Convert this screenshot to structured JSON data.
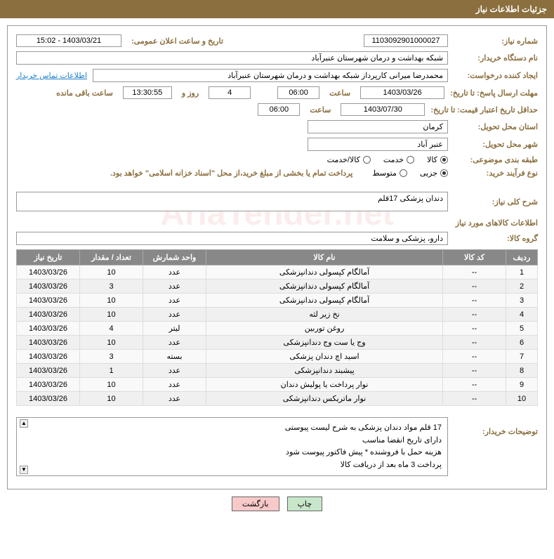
{
  "header": {
    "title": "جزئیات اطلاعات نیاز"
  },
  "fields": {
    "need_number_label": "شماره نیاز:",
    "need_number": "1103092901000027",
    "announce_date_label": "تاریخ و ساعت اعلان عمومی:",
    "announce_date": "1403/03/21 - 15:02",
    "buyer_org_label": "نام دستگاه خریدار:",
    "buyer_org": "شبکه بهداشت و درمان شهرستان عنبرآباد",
    "requester_label": "ایجاد کننده درخواست:",
    "requester": "محمدرضا میرانی کارپرداز  شبکه بهداشت و درمان شهرستان عنبرآباد",
    "contact_link": "اطلاعات تماس خریدار",
    "deadline_label": "مهلت ارسال پاسخ: تا تاریخ:",
    "deadline_date": "1403/03/26",
    "time_label": "ساعت",
    "deadline_time": "06:00",
    "days_remaining": "4",
    "days_word": "روز و",
    "time_remaining": "13:30:55",
    "remaining_label": "ساعت باقی مانده",
    "validity_label": "حداقل تاریخ اعتبار قیمت: تا تاریخ:",
    "validity_date": "1403/07/30",
    "validity_time": "06:00",
    "delivery_province_label": "استان محل تحویل:",
    "delivery_province": "کرمان",
    "delivery_city_label": "شهر محل تحویل:",
    "delivery_city": "عنبر آباد",
    "category_label": "طبقه بندی موضوعی:",
    "cat_kala": "کالا",
    "cat_khedmat": "خدمت",
    "cat_kala_khedmat": "کالا/خدمت",
    "purchase_type_label": "نوع فرآیند خرید:",
    "type_jozi": "جزیی",
    "type_motevaset": "متوسط",
    "purchase_note": "پرداخت تمام یا بخشی از مبلغ خرید،از محل \"اسناد خزانه اسلامی\" خواهد بود.",
    "need_desc_label": "شرح کلی نیاز:",
    "need_desc": "دندان پزشکی 17قلم",
    "goods_info_title": "اطلاعات کالاهای مورد نیاز",
    "goods_group_label": "گروه کالا:",
    "goods_group": "دارو، پزشکی و سلامت",
    "buyer_notes_label": "توضیحات خریدار:",
    "buyer_notes_line1": "17 قلم مواد دندان پزشکی به شرح لیست پیوستی",
    "buyer_notes_line2": "دارای تاریخ انقضا مناسب",
    "buyer_notes_line3": "هزینه حمل با فروشنده * پیش فاکتور پیوست شود",
    "buyer_notes_line4": "پرداخت 3 ماه بعد از دریافت کالا"
  },
  "table": {
    "headers": {
      "row": "ردیف",
      "code": "کد کالا",
      "name": "نام کالا",
      "unit": "واحد شمارش",
      "qty": "تعداد / مقدار",
      "date": "تاریخ نیاز"
    },
    "rows": [
      {
        "n": "1",
        "code": "--",
        "name": "آمالگام کپسولی دندانپزشکی",
        "unit": "عدد",
        "qty": "10",
        "date": "1403/03/26"
      },
      {
        "n": "2",
        "code": "--",
        "name": "آمالگام کپسولی دندانپزشکی",
        "unit": "عدد",
        "qty": "3",
        "date": "1403/03/26"
      },
      {
        "n": "3",
        "code": "--",
        "name": "آمالگام کپسولی دندانپزشکی",
        "unit": "عدد",
        "qty": "10",
        "date": "1403/03/26"
      },
      {
        "n": "4",
        "code": "--",
        "name": "نخ زیر لثه",
        "unit": "عدد",
        "qty": "10",
        "date": "1403/03/26"
      },
      {
        "n": "5",
        "code": "--",
        "name": "روغن توربین",
        "unit": "لیتر",
        "qty": "4",
        "date": "1403/03/26"
      },
      {
        "n": "6",
        "code": "--",
        "name": "وج یا ست وج دندانپزشکی",
        "unit": "عدد",
        "qty": "10",
        "date": "1403/03/26"
      },
      {
        "n": "7",
        "code": "--",
        "name": "اسید اچ دندان پزشکی",
        "unit": "بسته",
        "qty": "3",
        "date": "1403/03/26"
      },
      {
        "n": "8",
        "code": "--",
        "name": "پیشبند دندانپزشکی",
        "unit": "عدد",
        "qty": "1",
        "date": "1403/03/26"
      },
      {
        "n": "9",
        "code": "--",
        "name": "نوار پرداخت یا پولیش دندان",
        "unit": "عدد",
        "qty": "10",
        "date": "1403/03/26"
      },
      {
        "n": "10",
        "code": "--",
        "name": "نوار ماتریکس دندانپزشکی",
        "unit": "عدد",
        "qty": "10",
        "date": "1403/03/26"
      }
    ]
  },
  "buttons": {
    "print": "چاپ",
    "back": "بازگشت"
  },
  "watermark": "AriaTender.net"
}
